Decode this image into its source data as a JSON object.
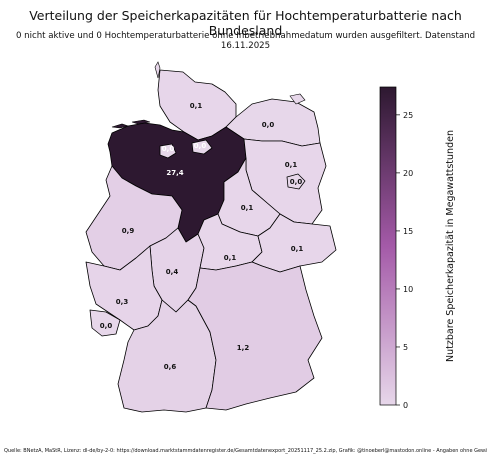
{
  "title": "Verteilung der Speicherkapazitäten für Hochtemperaturbatterie nach Bundesland",
  "subtitle": "0 nicht aktive und 0 Hochtemperaturbatterie ohne Inbetriebnahmedatum wurden ausgefiltert. Datenstand 16.11.2025",
  "footer": "Quelle: BNetzA, MaStR, Lizenz: dl-de/by-2-0: https://download.marktstammdatenregister.de/Gesamtdatenexport_20251117_25.2.zip, Grafik: @tinoeberl@mastodon.online - Angaben ohne Gewähr",
  "colorbar": {
    "label": "Nutzbare Speicherkapazität in Megawattstunden",
    "ticks": [
      "0",
      "5",
      "10",
      "15",
      "20",
      "25"
    ],
    "max": 27.4,
    "colors": [
      "#e7d7ea",
      "#a45aa8",
      "#2d1830"
    ]
  },
  "states": [
    {
      "id": "sh",
      "label": "0,1",
      "value": 0.1
    },
    {
      "id": "mv",
      "label": "0,0",
      "value": 0.0
    },
    {
      "id": "hh",
      "label": "0,0",
      "value": 0.0
    },
    {
      "id": "hb",
      "label": "0,0",
      "value": 0.0
    },
    {
      "id": "ni",
      "label": "27,4",
      "value": 27.4
    },
    {
      "id": "bb",
      "label": "0,1",
      "value": 0.1
    },
    {
      "id": "be",
      "label": "0,0",
      "value": 0.0
    },
    {
      "id": "st",
      "label": "0,1",
      "value": 0.1
    },
    {
      "id": "nw",
      "label": "0,9",
      "value": 0.9
    },
    {
      "id": "he",
      "label": "0,4",
      "value": 0.4
    },
    {
      "id": "th",
      "label": "0,1",
      "value": 0.1
    },
    {
      "id": "sn",
      "label": "0,1",
      "value": 0.1
    },
    {
      "id": "rp",
      "label": "0,3",
      "value": 0.3
    },
    {
      "id": "sl",
      "label": "0,0",
      "value": 0.0
    },
    {
      "id": "bw",
      "label": "0,6",
      "value": 0.6
    },
    {
      "id": "by",
      "label": "1,2",
      "value": 1.2
    }
  ]
}
